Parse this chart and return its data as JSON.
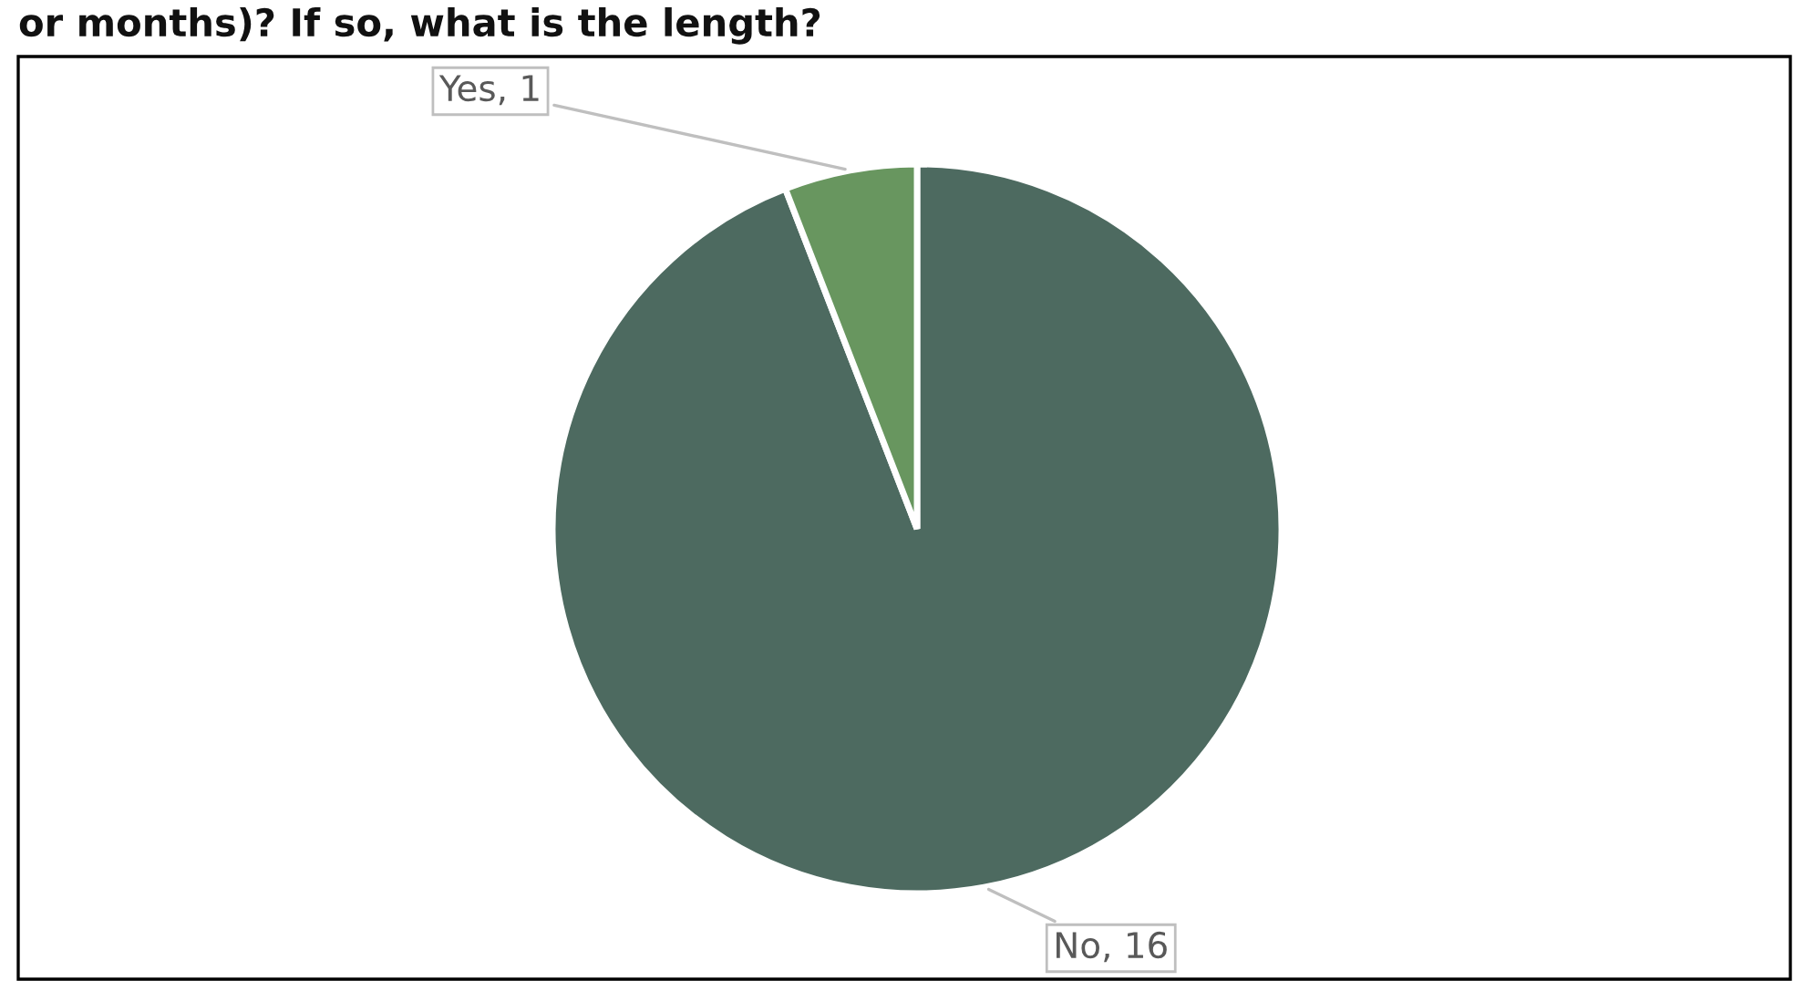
{
  "chart_data": {
    "type": "pie",
    "title": "or months)? If so, what is the length?",
    "categories": [
      "No",
      "Yes"
    ],
    "values": [
      16,
      1
    ],
    "colors": [
      "#4d6a60",
      "#68965f"
    ],
    "value_labels": [
      ", 16",
      ", 1"
    ],
    "legend": false
  }
}
